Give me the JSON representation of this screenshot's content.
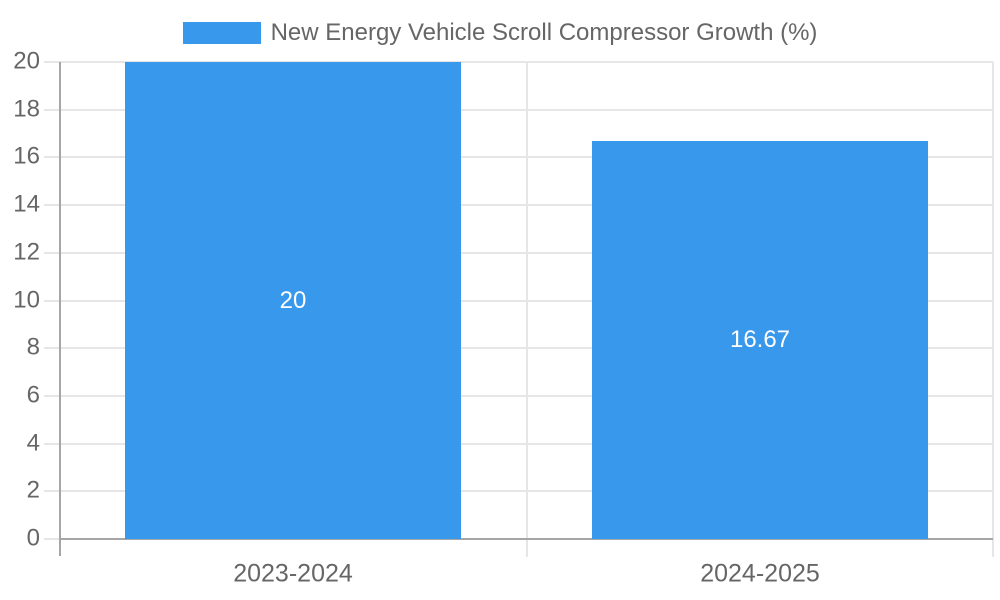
{
  "legend": {
    "label": "New Energy Vehicle Scroll Compressor Growth (%)"
  },
  "chart_data": {
    "type": "bar",
    "title": "New Energy Vehicle Scroll Compressor Growth (%)",
    "categories": [
      "2023-2024",
      "2024-2025"
    ],
    "values": [
      20,
      16.67
    ],
    "value_labels": [
      "20",
      "16.67"
    ],
    "xlabel": "",
    "ylabel": "",
    "ylim": [
      0,
      20
    ],
    "ytick_step": 2,
    "yticks": [
      0,
      2,
      4,
      6,
      8,
      10,
      12,
      14,
      16,
      18,
      20
    ],
    "grid": true,
    "legend_position": "top-center",
    "colors": {
      "bar": "#3898ec",
      "grid": "#e6e6e6",
      "axis": "#a6a6a6",
      "tick_text": "#666666",
      "value_text": "#ffffff"
    }
  }
}
